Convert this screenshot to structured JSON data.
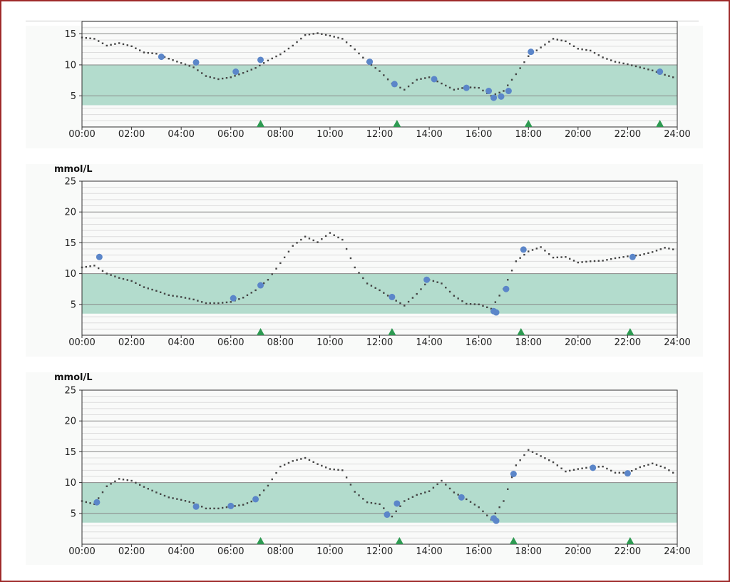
{
  "colors": {
    "frame": "#9e2a2a",
    "target_band": "#b3dccd",
    "trace": "#444444",
    "reading": "#5b86c9",
    "marker": "#2e9a52",
    "grid_major": "#888888",
    "grid_minor": "#dddddd"
  },
  "chart_data": [
    {
      "type": "scatter",
      "ylabel": "",
      "ylim": [
        0,
        17
      ],
      "yticks": [
        "5",
        "10",
        "15"
      ],
      "xticks": [
        "00:00",
        "02:00",
        "04:00",
        "06:00",
        "08:00",
        "10:00",
        "12:00",
        "14:00",
        "16:00",
        "18:00",
        "20:00",
        "22:00",
        "24:00"
      ],
      "target_range": [
        3.5,
        10
      ],
      "trace": [
        [
          0,
          14.4
        ],
        [
          0.5,
          14.2
        ],
        [
          1,
          13.1
        ],
        [
          1.5,
          13.5
        ],
        [
          2,
          13.0
        ],
        [
          2.5,
          12.0
        ],
        [
          3,
          11.8
        ],
        [
          3.5,
          11.0
        ],
        [
          4,
          10.3
        ],
        [
          4.5,
          9.6
        ],
        [
          5,
          8.2
        ],
        [
          5.5,
          7.7
        ],
        [
          6,
          8.0
        ],
        [
          6.5,
          8.7
        ],
        [
          7,
          9.5
        ],
        [
          7.5,
          10.7
        ],
        [
          8,
          11.7
        ],
        [
          8.5,
          13.1
        ],
        [
          9,
          14.8
        ],
        [
          9.5,
          15.1
        ],
        [
          10,
          14.7
        ],
        [
          10.5,
          14.2
        ],
        [
          11,
          12.5
        ],
        [
          11.5,
          10.5
        ],
        [
          12,
          9.0
        ],
        [
          12.5,
          7.0
        ],
        [
          13,
          6.0
        ],
        [
          13.5,
          7.6
        ],
        [
          14,
          8.0
        ],
        [
          14.5,
          7.0
        ],
        [
          15,
          6.0
        ],
        [
          15.5,
          6.4
        ],
        [
          16,
          6.3
        ],
        [
          16.5,
          5.0
        ],
        [
          17,
          5.8
        ],
        [
          17.5,
          8.5
        ],
        [
          18,
          11.4
        ],
        [
          18.5,
          12.8
        ],
        [
          19,
          14.2
        ],
        [
          19.5,
          13.8
        ],
        [
          20,
          12.6
        ],
        [
          20.5,
          12.3
        ],
        [
          21,
          11.2
        ],
        [
          21.5,
          10.5
        ],
        [
          22,
          10.1
        ],
        [
          22.5,
          9.6
        ],
        [
          23,
          9.1
        ],
        [
          23.5,
          8.4
        ],
        [
          24,
          7.8
        ]
      ],
      "readings": [
        [
          3.2,
          11.3
        ],
        [
          4.6,
          10.4
        ],
        [
          6.2,
          8.9
        ],
        [
          7.2,
          10.8
        ],
        [
          11.6,
          10.5
        ],
        [
          12.6,
          6.9
        ],
        [
          14.2,
          7.7
        ],
        [
          15.5,
          6.3
        ],
        [
          16.4,
          5.8
        ],
        [
          16.6,
          4.7
        ],
        [
          16.9,
          4.9
        ],
        [
          17.2,
          5.8
        ],
        [
          18.1,
          12.1
        ],
        [
          23.3,
          8.9
        ]
      ],
      "markers": [
        7.2,
        12.7,
        18.0,
        23.3
      ]
    },
    {
      "type": "scatter",
      "ylabel": "mmol/L",
      "ylim": [
        0,
        25
      ],
      "yticks": [
        "5",
        "10",
        "15",
        "20",
        "25"
      ],
      "xticks": [
        "00:00",
        "02:00",
        "04:00",
        "06:00",
        "08:00",
        "10:00",
        "12:00",
        "14:00",
        "16:00",
        "18:00",
        "20:00",
        "22:00",
        "24:00"
      ],
      "target_range": [
        3.5,
        10
      ],
      "trace": [
        [
          0,
          11.0
        ],
        [
          0.5,
          11.3
        ],
        [
          1,
          10.0
        ],
        [
          1.5,
          9.3
        ],
        [
          2,
          8.8
        ],
        [
          2.5,
          7.8
        ],
        [
          3,
          7.2
        ],
        [
          3.5,
          6.5
        ],
        [
          4,
          6.2
        ],
        [
          4.5,
          5.8
        ],
        [
          5,
          5.2
        ],
        [
          5.5,
          5.2
        ],
        [
          6,
          5.4
        ],
        [
          6.5,
          6.1
        ],
        [
          7,
          7.3
        ],
        [
          7.5,
          9.0
        ],
        [
          8,
          11.7
        ],
        [
          8.5,
          14.5
        ],
        [
          9,
          16.0
        ],
        [
          9.5,
          15.1
        ],
        [
          10,
          16.6
        ],
        [
          10.5,
          15.5
        ],
        [
          11,
          11.0
        ],
        [
          11.5,
          8.4
        ],
        [
          12,
          7.3
        ],
        [
          12.5,
          6.0
        ],
        [
          13,
          4.8
        ],
        [
          13.5,
          6.7
        ],
        [
          14,
          9.0
        ],
        [
          14.5,
          8.4
        ],
        [
          15,
          6.4
        ],
        [
          15.5,
          5.1
        ],
        [
          16,
          5.0
        ],
        [
          16.5,
          4.3
        ],
        [
          17,
          7.5
        ],
        [
          17.5,
          12.0
        ],
        [
          18,
          13.6
        ],
        [
          18.5,
          14.3
        ],
        [
          19,
          12.6
        ],
        [
          19.5,
          12.7
        ],
        [
          20,
          11.8
        ],
        [
          20.5,
          12.0
        ],
        [
          21,
          12.1
        ],
        [
          21.5,
          12.5
        ],
        [
          22,
          12.8
        ],
        [
          22.5,
          13.0
        ],
        [
          23,
          13.5
        ],
        [
          23.5,
          14.2
        ],
        [
          24,
          13.8
        ]
      ],
      "readings": [
        [
          0.7,
          12.7
        ],
        [
          6.1,
          6.0
        ],
        [
          7.2,
          8.1
        ],
        [
          12.5,
          6.2
        ],
        [
          13.9,
          9.0
        ],
        [
          16.6,
          3.9
        ],
        [
          16.7,
          3.7
        ],
        [
          17.1,
          7.5
        ],
        [
          17.8,
          13.9
        ],
        [
          22.2,
          12.7
        ]
      ],
      "markers": [
        7.2,
        12.5,
        17.7,
        22.1
      ]
    },
    {
      "type": "scatter",
      "ylabel": "mmol/L",
      "ylim": [
        0,
        25
      ],
      "yticks": [
        "5",
        "10",
        "15",
        "20",
        "25"
      ],
      "xticks": [
        "00:00",
        "02:00",
        "04:00",
        "06:00",
        "08:00",
        "10:00",
        "12:00",
        "14:00",
        "16:00",
        "18:00",
        "20:00",
        "22:00",
        "24:00"
      ],
      "target_range": [
        3.5,
        10
      ],
      "trace": [
        [
          0,
          7.0
        ],
        [
          0.5,
          6.5
        ],
        [
          1,
          9.4
        ],
        [
          1.5,
          10.6
        ],
        [
          2,
          10.3
        ],
        [
          2.5,
          9.3
        ],
        [
          3,
          8.4
        ],
        [
          3.5,
          7.6
        ],
        [
          4,
          7.2
        ],
        [
          4.5,
          6.7
        ],
        [
          5,
          5.8
        ],
        [
          5.5,
          5.8
        ],
        [
          6,
          6.1
        ],
        [
          6.5,
          6.4
        ],
        [
          7,
          7.2
        ],
        [
          7.5,
          9.5
        ],
        [
          8,
          12.6
        ],
        [
          8.5,
          13.5
        ],
        [
          9,
          14.0
        ],
        [
          9.5,
          13.0
        ],
        [
          10,
          12.2
        ],
        [
          10.5,
          12.0
        ],
        [
          11,
          8.5
        ],
        [
          11.5,
          6.8
        ],
        [
          12,
          6.5
        ],
        [
          12.5,
          4.5
        ],
        [
          13,
          7.0
        ],
        [
          13.5,
          8.0
        ],
        [
          14,
          8.6
        ],
        [
          14.5,
          10.3
        ],
        [
          15,
          8.4
        ],
        [
          15.5,
          7.3
        ],
        [
          16,
          6.0
        ],
        [
          16.5,
          4.0
        ],
        [
          17,
          7.0
        ],
        [
          17.5,
          12.8
        ],
        [
          18,
          15.3
        ],
        [
          18.5,
          14.3
        ],
        [
          19,
          13.3
        ],
        [
          19.5,
          11.8
        ],
        [
          20,
          12.2
        ],
        [
          20.5,
          12.5
        ],
        [
          21,
          12.6
        ],
        [
          21.5,
          11.6
        ],
        [
          22,
          11.6
        ],
        [
          22.5,
          12.5
        ],
        [
          23,
          13.1
        ],
        [
          23.5,
          12.4
        ],
        [
          24,
          11.2
        ]
      ],
      "readings": [
        [
          0.6,
          6.8
        ],
        [
          4.6,
          6.1
        ],
        [
          6.0,
          6.2
        ],
        [
          7.0,
          7.3
        ],
        [
          12.3,
          4.8
        ],
        [
          12.7,
          6.6
        ],
        [
          15.3,
          7.6
        ],
        [
          16.6,
          4.2
        ],
        [
          16.7,
          3.8
        ],
        [
          17.4,
          11.4
        ],
        [
          20.6,
          12.4
        ],
        [
          22.0,
          11.5
        ]
      ],
      "markers": [
        7.2,
        12.8,
        17.4,
        22.1
      ]
    }
  ]
}
